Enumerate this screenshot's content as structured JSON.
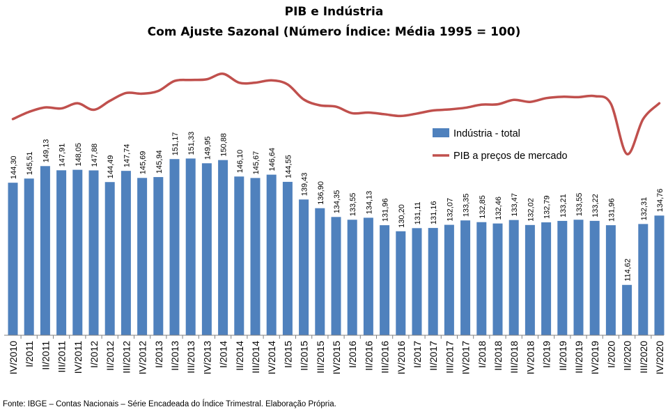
{
  "chart_data": {
    "type": "bar",
    "title": "PIB e Indústria",
    "subtitle": "Com Ajuste Sazonal (Número Índice: Média 1995 = 100)",
    "source": "Fonte: IBGE – Contas Nacionais – Série Encadeada do Índice Trimestral. Elaboração Própria.",
    "categories": [
      "IV/2010",
      "I/2011",
      "II/2011",
      "III/2011",
      "IV/2011",
      "I/2012",
      "II/2012",
      "III/2012",
      "IV/2012",
      "I/2013",
      "II/2013",
      "III/2013",
      "IV/2013",
      "I/2014",
      "II/2014",
      "III/2014",
      "IV/2014",
      "I/2015",
      "II/2015",
      "III/2015",
      "IV/2015",
      "I/2016",
      "II/2016",
      "III/2016",
      "IV/2016",
      "I/2017",
      "II/2017",
      "III/2017",
      "IV/2017",
      "I/2018",
      "II/2018",
      "III/2018",
      "IV/2018",
      "I/2019",
      "II/2019",
      "III/2019",
      "IV/2019",
      "I/2020",
      "II/2020",
      "III/2020",
      "IV/2020"
    ],
    "series": [
      {
        "name": "Indústria - total",
        "kind": "bar",
        "color": "#4f81bd",
        "values": [
          144.3,
          145.51,
          149.13,
          147.91,
          148.05,
          147.88,
          144.49,
          147.74,
          145.69,
          145.94,
          151.17,
          151.33,
          149.95,
          150.88,
          146.1,
          145.67,
          146.64,
          144.55,
          139.43,
          136.9,
          134.35,
          133.55,
          134.13,
          131.96,
          130.2,
          131.11,
          131.16,
          132.07,
          133.35,
          132.85,
          132.46,
          133.47,
          132.02,
          132.79,
          133.21,
          133.55,
          133.22,
          131.96,
          114.62,
          132.31,
          134.76
        ],
        "labels": [
          "144,30",
          "145,51",
          "149,13",
          "147,91",
          "148,05",
          "147,88",
          "144,49",
          "147,74",
          "145,69",
          "145,94",
          "151,17",
          "151,33",
          "149,95",
          "150,88",
          "146,10",
          "145,67",
          "146,64",
          "144,55",
          "139,43",
          "136,90",
          "134,35",
          "133,55",
          "134,13",
          "131,96",
          "130,20",
          "131,11",
          "131,16",
          "132,07",
          "133,35",
          "132,85",
          "132,46",
          "133,47",
          "132,02",
          "132,79",
          "133,21",
          "133,55",
          "133,22",
          "131,96",
          "114,62",
          "132,31",
          "134,76"
        ]
      },
      {
        "name": "PIB a preços de mercado",
        "kind": "line",
        "color": "#c0504d",
        "values": [
          171.5,
          173.6,
          174.9,
          174.6,
          176.1,
          174.2,
          176.8,
          179.1,
          178.9,
          179.7,
          182.6,
          182.9,
          183.1,
          184.7,
          182.1,
          182.1,
          182.8,
          181.6,
          177.2,
          175.5,
          175.1,
          173.2,
          173.4,
          172.9,
          172.4,
          173.1,
          174.0,
          174.3,
          174.8,
          175.7,
          175.8,
          177.1,
          176.5,
          177.6,
          178.0,
          177.9,
          178.2,
          176.0,
          161.3,
          171.5,
          176.1
        ]
      }
    ],
    "ylim": [
      100,
      190
    ],
    "grid": false,
    "legend_position": "right-middle"
  }
}
